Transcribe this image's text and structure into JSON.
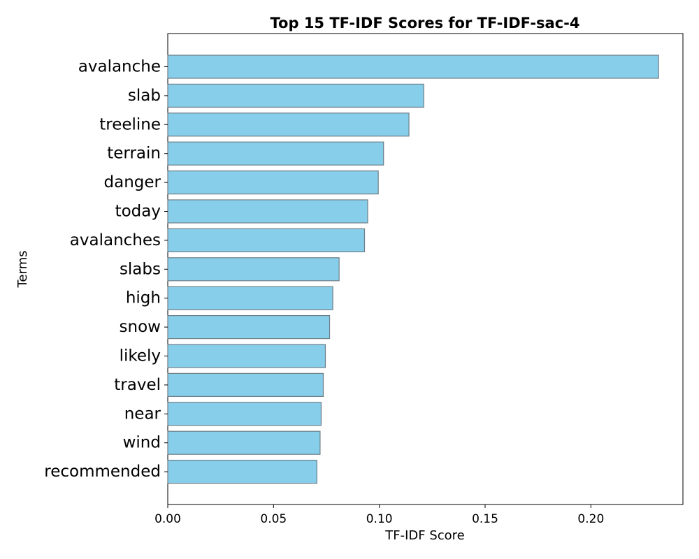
{
  "chart_data": {
    "type": "bar",
    "orientation": "horizontal",
    "title": "Top 15 TF-IDF Scores for TF-IDF-sac-4",
    "xlabel": "TF-IDF Score",
    "ylabel": "Terms",
    "categories": [
      "avalanche",
      "slab",
      "treeline",
      "terrain",
      "danger",
      "today",
      "avalanches",
      "slabs",
      "high",
      "snow",
      "likely",
      "travel",
      "near",
      "wind",
      "recommended"
    ],
    "values": [
      0.232,
      0.121,
      0.114,
      0.102,
      0.0995,
      0.0945,
      0.093,
      0.081,
      0.078,
      0.0765,
      0.0745,
      0.0735,
      0.0725,
      0.072,
      0.0705
    ],
    "xlim": [
      0,
      0.2435
    ],
    "xticks": [
      "0.00",
      "0.05",
      "0.10",
      "0.15",
      "0.20"
    ],
    "xtick_values": [
      0.0,
      0.05,
      0.1,
      0.15,
      0.2
    ],
    "grid": false,
    "legend": "none",
    "bar_color": "#87ceeb",
    "bar_edge_color": "#6e7f87"
  }
}
